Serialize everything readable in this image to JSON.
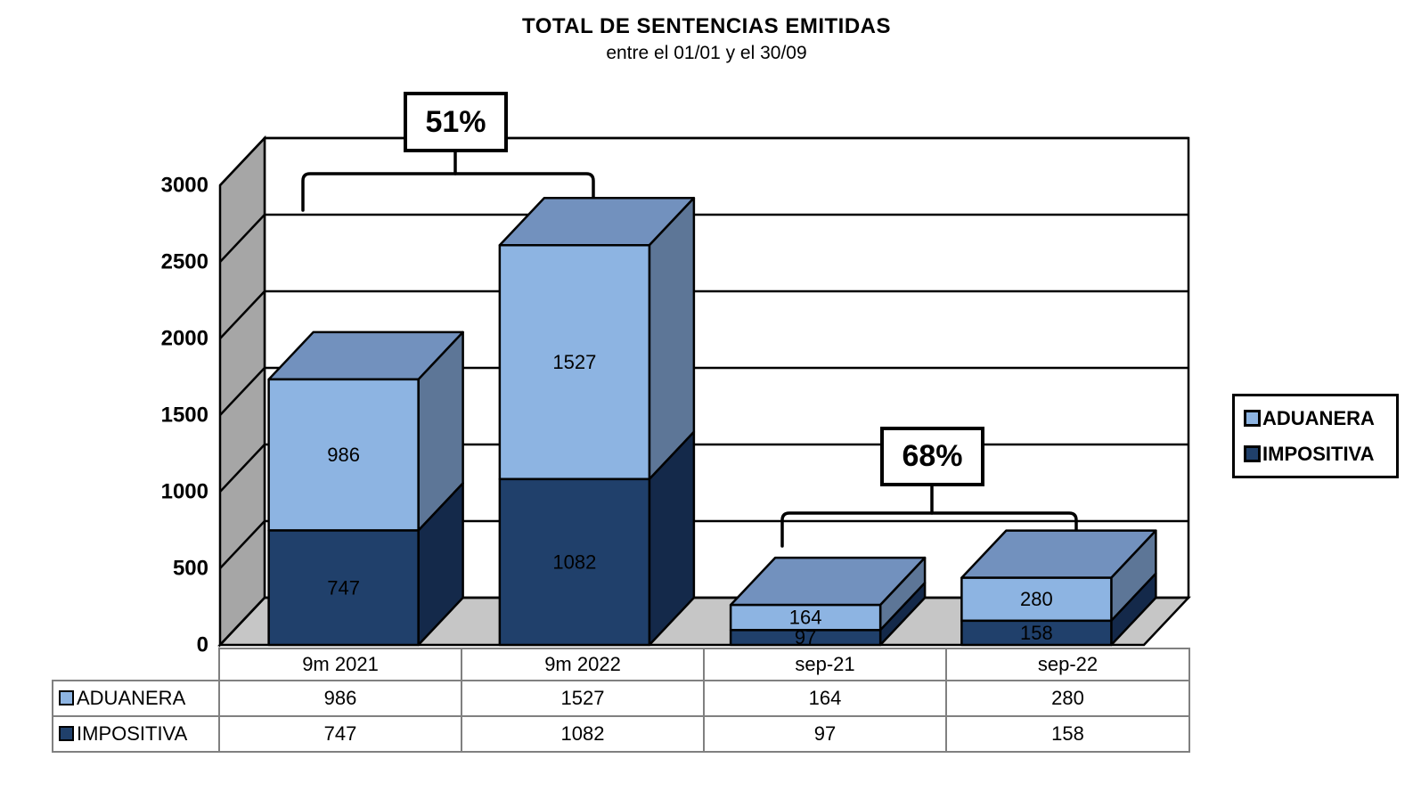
{
  "title": "TOTAL DE SENTENCIAS EMITIDAS",
  "subtitle": "entre el 01/01 y el 30/09",
  "colors": {
    "aduanera_front": "#8DB4E2",
    "aduanera_top": "#7291BE",
    "aduanera_side": "#5D7697",
    "impositiva_front": "#20406B",
    "impositiva_top": "#2E507C",
    "impositiva_side": "#14294A",
    "wall_side": "#A6A6A6",
    "floor": "#C6C6C6",
    "outline": "#000000",
    "table_border": "#808080"
  },
  "chart_data": {
    "type": "bar",
    "stacked": true,
    "projection": "3d",
    "title": "TOTAL DE SENTENCIAS EMITIDAS",
    "subtitle": "entre el 01/01 y el 30/09",
    "categories": [
      "9m 2021",
      "9m 2022",
      "sep-21",
      "sep-22"
    ],
    "series": [
      {
        "name": "ADUANERA",
        "values": [
          986,
          1527,
          164,
          280
        ]
      },
      {
        "name": "IMPOSITIVA",
        "values": [
          747,
          1082,
          97,
          158
        ]
      }
    ],
    "stack_order_bottom_to_top": [
      "IMPOSITIVA",
      "ADUANERA"
    ],
    "ylim": [
      0,
      3000
    ],
    "y_ticks": [
      0,
      500,
      1000,
      1500,
      2000,
      2500,
      3000
    ],
    "grid": true,
    "legend_position": "right",
    "data_table_shown": true,
    "annotations": [
      {
        "label": "51%",
        "spans": [
          "9m 2021",
          "9m 2022"
        ]
      },
      {
        "label": "68%",
        "spans": [
          "sep-21",
          "sep-22"
        ]
      }
    ]
  }
}
